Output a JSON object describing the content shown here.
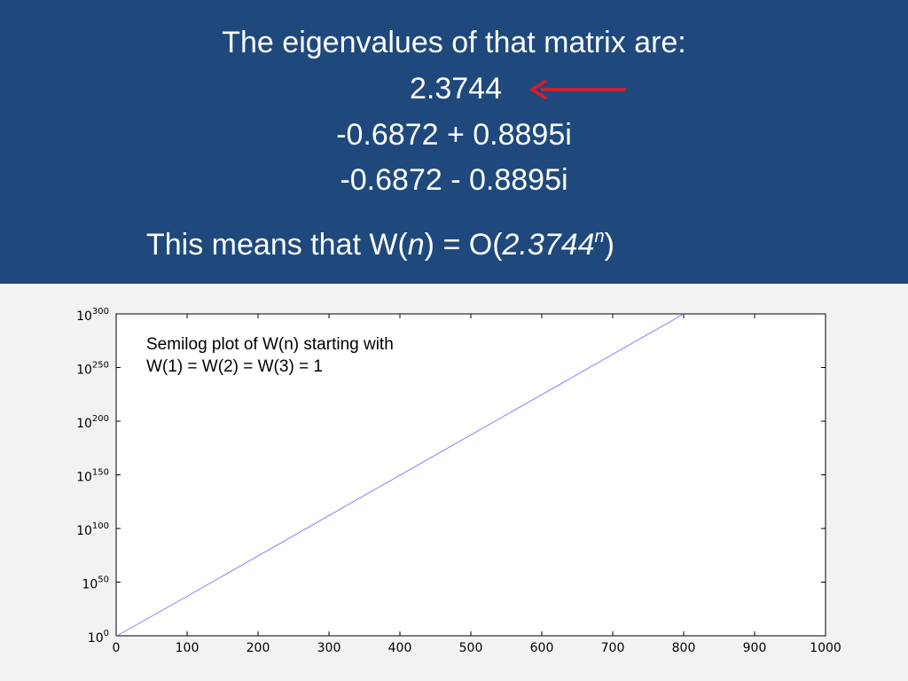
{
  "header": {
    "title": "The eigenvalues of that matrix are:",
    "eigenvalues": [
      "2.3744",
      "-0.6872 + 0.8895i",
      "-0.6872 - 0.8895i"
    ],
    "arrow_color": "#e01b24",
    "means_prefix": "This means that W(",
    "means_n": "n",
    "means_mid": ") = O(",
    "means_base": "2.3744",
    "means_exp": "n",
    "means_suffix": ")"
  },
  "colors": {
    "header_bg": "#1f497d",
    "page_bg": "#f2f2f2",
    "series_line": "#7f7fff"
  },
  "chart_data": {
    "type": "line",
    "yscale": "log",
    "annotation": [
      "Semilog plot of W(n) starting with",
      "W(1) = W(2) = W(3) = 1"
    ],
    "xlim": [
      0,
      1000
    ],
    "ylim_exponent": [
      0,
      300
    ],
    "x_ticks": [
      0,
      100,
      200,
      300,
      400,
      500,
      600,
      700,
      800,
      900,
      1000
    ],
    "y_ticks": [
      {
        "base": "10",
        "exp": "0"
      },
      {
        "base": "10",
        "exp": "50"
      },
      {
        "base": "10",
        "exp": "100"
      },
      {
        "base": "10",
        "exp": "150"
      },
      {
        "base": "10",
        "exp": "200"
      },
      {
        "base": "10",
        "exp": "250"
      },
      {
        "base": "10",
        "exp": "300"
      }
    ],
    "y_tick_exponents": [
      0,
      50,
      100,
      150,
      200,
      250,
      300
    ],
    "series": [
      {
        "x": [
          1,
          100,
          200,
          300,
          400,
          500,
          600,
          700,
          800,
          820
        ],
        "log10_y": [
          0,
          36.8,
          74.5,
          112.1,
          149.7,
          187.2,
          224.7,
          262.3,
          299.9,
          307.4
        ]
      }
    ],
    "grid": false
  }
}
